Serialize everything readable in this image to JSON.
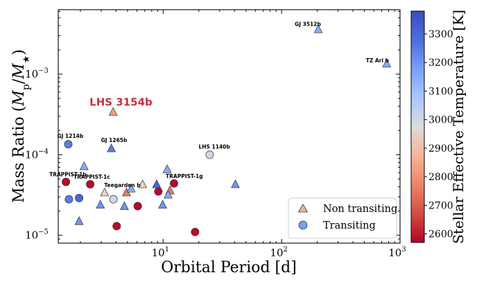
{
  "chart_data": {
    "type": "scatter",
    "xlabel": "Orbital Period [d]",
    "ylabel_parts": [
      "Mass Ratio (",
      "M",
      "p",
      "/",
      "M",
      "★",
      ")"
    ],
    "x_scale": "log",
    "y_scale": "log",
    "xlim": [
      1.3,
      1000
    ],
    "ylim": [
      8e-06,
      0.0063
    ],
    "x_ticks": [
      {
        "value": 10,
        "base": "10",
        "exp": "1"
      },
      {
        "value": 100,
        "base": "10",
        "exp": "2"
      },
      {
        "value": 1000,
        "base": "10",
        "exp": "3"
      }
    ],
    "y_ticks": [
      {
        "value": 1e-05,
        "base": "10",
        "exp": "−5"
      },
      {
        "value": 0.0001,
        "base": "10",
        "exp": "−4"
      },
      {
        "value": 0.001,
        "base": "10",
        "exp": "−3"
      }
    ],
    "colorbar": {
      "label": "Stellar Effective Temperature [K]",
      "range": [
        2570,
        3380
      ],
      "ticks": [
        "2600",
        "2700",
        "2800",
        "2900",
        "3000",
        "3100",
        "3200",
        "3300"
      ],
      "colors": [
        "#b40426",
        "#d44e41",
        "#ee8468",
        "#f7b497",
        "#dddcdc",
        "#aac7fd",
        "#7b9ff9",
        "#4c6edb",
        "#3b4cc0"
      ]
    },
    "legend": {
      "position": "lower-right",
      "entries": [
        {
          "label": "Non transiting",
          "marker": "triangle",
          "color": "#f2b29a"
        },
        {
          "label": "Transiting",
          "marker": "circle",
          "color": "#7b9ff9"
        }
      ]
    },
    "points": [
      {
        "x": 3.78,
        "y": 0.00034,
        "marker": "triangle",
        "teff": 2830,
        "label": "LHS 3154b"
      },
      {
        "x": 204,
        "y": 0.0036,
        "marker": "triangle",
        "teff": 3150,
        "label": "GJ 3512b"
      },
      {
        "x": 771,
        "y": 0.00135,
        "marker": "triangle",
        "teff": 3150,
        "label": "TZ Ari b"
      },
      {
        "x": 1.58,
        "y": 0.000135,
        "marker": "circle",
        "teff": 3250,
        "label": "GJ 1214b"
      },
      {
        "x": 3.65,
        "y": 0.00012,
        "marker": "triangle",
        "teff": 3250,
        "label": "GJ 1265b"
      },
      {
        "x": 24.7,
        "y": 0.0001,
        "marker": "circle",
        "teff": 3000,
        "label": "LHS 1140b"
      },
      {
        "x": 1.51,
        "y": 4.6e-05,
        "marker": "circle",
        "teff": 2580,
        "label": "TRAPPIST-1b"
      },
      {
        "x": 2.42,
        "y": 4.3e-05,
        "marker": "circle",
        "teff": 2580,
        "label": "TRAPPIST-1c"
      },
      {
        "x": 12.35,
        "y": 4.4e-05,
        "marker": "circle",
        "teff": 2580,
        "label": "TRAPPIST-1g"
      },
      {
        "x": 4.9,
        "y": 3.4e-05,
        "marker": "triangle",
        "teff": 2760,
        "label": "Teegarden b"
      },
      {
        "x": 2.15,
        "y": 7.2e-05,
        "marker": "triangle",
        "teff": 3150
      },
      {
        "x": 10.8,
        "y": 6.6e-05,
        "marker": "triangle",
        "teff": 3150
      },
      {
        "x": 40.7,
        "y": 4.3e-05,
        "marker": "triangle",
        "teff": 3200
      },
      {
        "x": 5.36,
        "y": 3.8e-05,
        "marker": "triangle",
        "teff": 3150
      },
      {
        "x": 3.2,
        "y": 3.4e-05,
        "marker": "triangle",
        "teff": 2950
      },
      {
        "x": 6.7,
        "y": 4.3e-05,
        "marker": "triangle",
        "teff": 2950
      },
      {
        "x": 8.8,
        "y": 4.3e-05,
        "marker": "triangle",
        "teff": 3300
      },
      {
        "x": 11.4,
        "y": 3.6e-05,
        "marker": "triangle",
        "teff": 2760
      },
      {
        "x": 11.0,
        "y": 3.2e-05,
        "marker": "triangle",
        "teff": 3150
      },
      {
        "x": 1.6,
        "y": 2.8e-05,
        "marker": "circle",
        "teff": 3250
      },
      {
        "x": 1.95,
        "y": 2.9e-05,
        "marker": "circle",
        "teff": 3300
      },
      {
        "x": 3.8,
        "y": 2.8e-05,
        "marker": "circle",
        "teff": 3000
      },
      {
        "x": 9.1,
        "y": 3.5e-05,
        "marker": "circle",
        "teff": 2580
      },
      {
        "x": 2.95,
        "y": 2.4e-05,
        "marker": "triangle",
        "teff": 3200
      },
      {
        "x": 4.7,
        "y": 2.3e-05,
        "marker": "triangle",
        "teff": 3200
      },
      {
        "x": 9.9,
        "y": 2.4e-05,
        "marker": "triangle",
        "teff": 3200
      },
      {
        "x": 6.1,
        "y": 2.3e-05,
        "marker": "circle",
        "teff": 2580
      },
      {
        "x": 1.95,
        "y": 1.5e-05,
        "marker": "triangle",
        "teff": 3200
      },
      {
        "x": 4.05,
        "y": 1.3e-05,
        "marker": "circle",
        "teff": 2580
      },
      {
        "x": 18.6,
        "y": 1.1e-05,
        "marker": "circle",
        "teff": 2580
      }
    ]
  }
}
